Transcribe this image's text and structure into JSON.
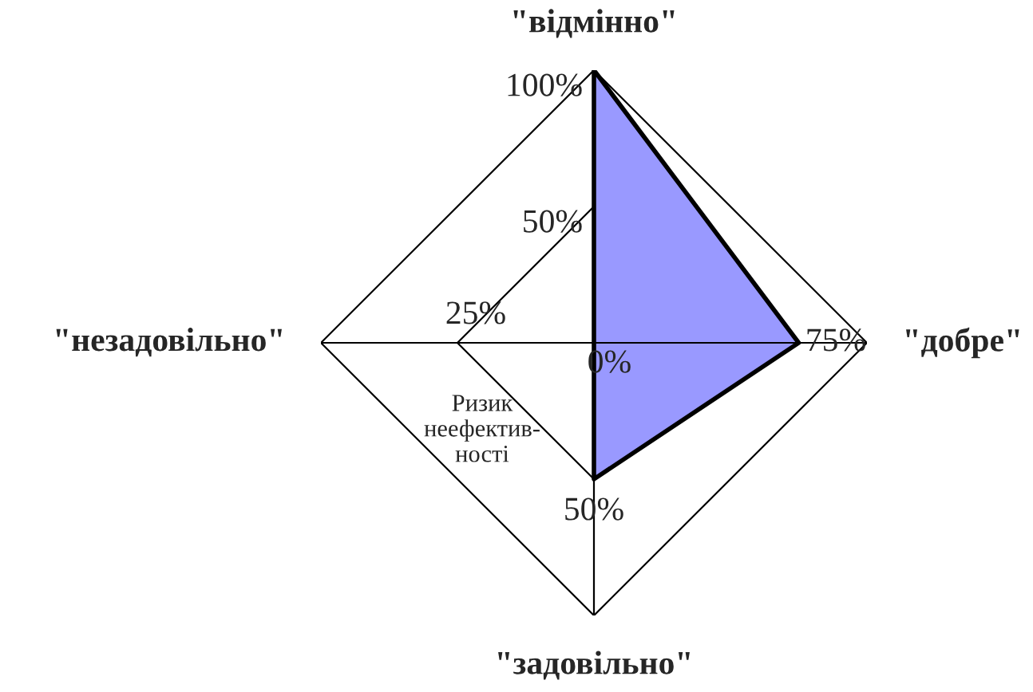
{
  "chart_data": {
    "type": "radar",
    "categories": [
      "\"відмінно\"",
      "\"добре\"",
      "\"задовільно\"",
      "\"незадовільно\""
    ],
    "series": [
      {
        "color": "#9999ff",
        "values": [
          100,
          75,
          50,
          0
        ],
        "value_labels": [
          null,
          "75%",
          "50%",
          "0%"
        ]
      }
    ],
    "ylim": [
      0,
      100
    ],
    "yticks": [
      {
        "value": 50,
        "label": "50%"
      },
      {
        "value": 100,
        "label": "100%"
      }
    ],
    "grid": true,
    "annotations": [
      "25%",
      "Ризик\nнеефектив-\nності"
    ]
  }
}
